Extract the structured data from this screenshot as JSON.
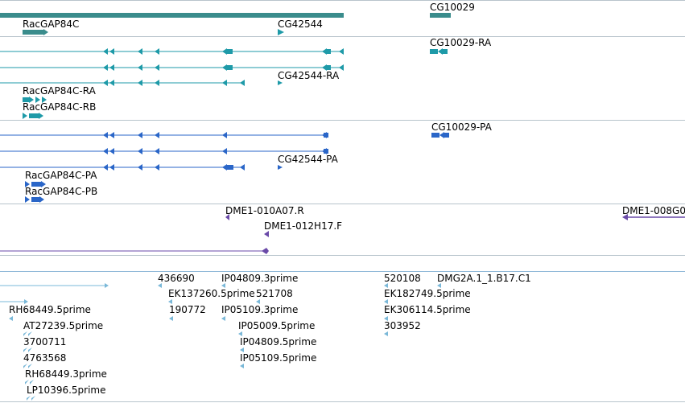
{
  "colors": {
    "gene": "#3a8c8c",
    "mrna": "#1e9aa8",
    "cds": "#2a66c8",
    "clone": "#6a4aa8",
    "est": "#7ab8d8",
    "separator": "#b8c4cc"
  },
  "tracks": {
    "genes": {
      "labels": [
        {
          "text": "CG10029"
        },
        {
          "text": "RacGAP84C"
        },
        {
          "text": "CG42544"
        }
      ]
    },
    "transcripts": {
      "labels": [
        {
          "text": "CG10029-RA"
        },
        {
          "text": "CG42544-RA"
        },
        {
          "text": "RacGAP84C-RA"
        },
        {
          "text": "RacGAP84C-RB"
        }
      ]
    },
    "cds": {
      "labels": [
        {
          "text": "CG10029-PA"
        },
        {
          "text": "CG42544-PA"
        },
        {
          "text": "RacGAP84C-PA"
        },
        {
          "text": "RacGAP84C-PB"
        }
      ]
    },
    "clones": {
      "labels": [
        {
          "text": "DME1-010A07.R"
        },
        {
          "text": "DME1-012H17.F"
        },
        {
          "text": "DME1-008G0"
        }
      ]
    },
    "ests": {
      "labels": [
        {
          "text": "436690"
        },
        {
          "text": "IP04809.3prime"
        },
        {
          "text": "520108"
        },
        {
          "text": "DMG2A.1_1.B17.C1"
        },
        {
          "text": "EK137260.5prime"
        },
        {
          "text": "521708"
        },
        {
          "text": "EK182749.5prime"
        },
        {
          "text": "RH68449.5prime"
        },
        {
          "text": "190772"
        },
        {
          "text": "IP05109.3prime"
        },
        {
          "text": "EK306114.5prime"
        },
        {
          "text": "AT27239.5prime"
        },
        {
          "text": "IP05009.5prime"
        },
        {
          "text": "303952"
        },
        {
          "text": "3700711"
        },
        {
          "text": "IP04809.5prime"
        },
        {
          "text": "4763568"
        },
        {
          "text": "IP05109.5prime"
        },
        {
          "text": "RH68449.3prime"
        },
        {
          "text": "LP10396.5prime"
        }
      ]
    }
  }
}
